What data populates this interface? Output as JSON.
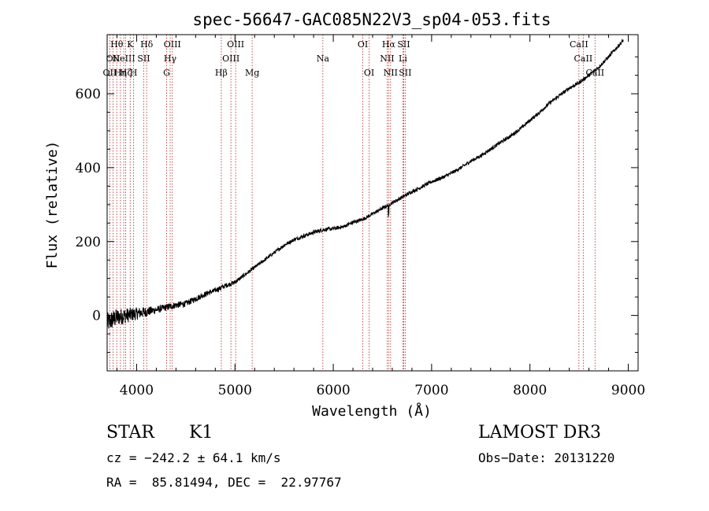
{
  "chart_data": {
    "type": "line",
    "title": "spec-56647-GAC085N22V3_sp04-053.fits",
    "xlabel": "Wavelength (Å)",
    "ylabel": "Flux (relative)",
    "xlim": [
      3700,
      9100
    ],
    "ylim": [
      -150,
      760
    ],
    "xticks": [
      4000,
      5000,
      6000,
      7000,
      8000,
      9000
    ],
    "xtick_labels": [
      "4000",
      "5000",
      "6000",
      "7000",
      "8000",
      "9000"
    ],
    "yticks": [
      0,
      200,
      400,
      600
    ],
    "ytick_labels": [
      "0",
      "200",
      "400",
      "600"
    ],
    "series": [
      {
        "name": "flux",
        "x": [
          3700,
          3800,
          3900,
          4000,
          4100,
          4200,
          4300,
          4400,
          4500,
          4600,
          4700,
          4800,
          4900,
          5000,
          5100,
          5200,
          5300,
          5400,
          5500,
          5600,
          5700,
          5800,
          5900,
          6000,
          6100,
          6200,
          6300,
          6400,
          6500,
          6600,
          6700,
          6800,
          6900,
          7000,
          7100,
          7200,
          7300,
          7400,
          7500,
          7600,
          7700,
          7800,
          7900,
          8000,
          8100,
          8200,
          8300,
          8400,
          8500,
          8600,
          8700,
          8800,
          8900,
          8950
        ],
        "y": [
          -20,
          -5,
          0,
          5,
          10,
          15,
          22,
          28,
          32,
          45,
          58,
          68,
          80,
          90,
          110,
          130,
          150,
          170,
          190,
          205,
          215,
          225,
          232,
          235,
          240,
          252,
          260,
          275,
          290,
          305,
          320,
          335,
          348,
          362,
          372,
          385,
          400,
          418,
          432,
          450,
          468,
          485,
          505,
          528,
          550,
          575,
          595,
          615,
          630,
          650,
          672,
          700,
          730,
          745
        ]
      }
    ],
    "lines": [
      {
        "x": 3727,
        "label": "OII",
        "row": 3
      },
      {
        "x": 3760,
        "label": "OII",
        "row": 2
      },
      {
        "x": 3798,
        "label": "Hθ",
        "row": 1
      },
      {
        "x": 3835,
        "label": "Hη",
        "row": 3
      },
      {
        "x": 3869,
        "label": "NeIII",
        "row": 2
      },
      {
        "x": 3889,
        "label": "Hζ",
        "row": 3
      },
      {
        "x": 3934,
        "label": "K",
        "row": 1
      },
      {
        "x": 3969,
        "label": "H",
        "row": 3
      },
      {
        "x": 4072,
        "label": "SII",
        "row": 2
      },
      {
        "x": 4102,
        "label": "Hδ",
        "row": 1
      },
      {
        "x": 4305,
        "label": "G",
        "row": 3
      },
      {
        "x": 4341,
        "label": "Hγ",
        "row": 2
      },
      {
        "x": 4363,
        "label": "OIII",
        "row": 1
      },
      {
        "x": 4861,
        "label": "Hβ",
        "row": 3
      },
      {
        "x": 4959,
        "label": "OIII",
        "row": 2
      },
      {
        "x": 5007,
        "label": "OIII",
        "row": 1
      },
      {
        "x": 5175,
        "label": "Mg",
        "row": 3
      },
      {
        "x": 5894,
        "label": "Na",
        "row": 2
      },
      {
        "x": 6300,
        "label": "OI",
        "row": 1
      },
      {
        "x": 6364,
        "label": "OI",
        "row": 3
      },
      {
        "x": 6548,
        "label": "NII",
        "row": 2
      },
      {
        "x": 6563,
        "label": "Hα",
        "row": 1
      },
      {
        "x": 6583,
        "label": "NII",
        "row": 3
      },
      {
        "x": 6708,
        "label": "Li",
        "row": 2
      },
      {
        "x": 6716,
        "label": "SII",
        "row": 1
      },
      {
        "x": 6731,
        "label": "SII",
        "row": 3
      },
      {
        "x": 8498,
        "label": "CaII",
        "row": 1
      },
      {
        "x": 8542,
        "label": "CaII",
        "row": 2
      },
      {
        "x": 8662,
        "label": "CaII",
        "row": 3
      }
    ]
  },
  "info": {
    "obj_class": "STAR",
    "subclass": "K1",
    "survey": "LAMOST DR3",
    "cz": "cz = −242.2 ± 64.1 km/s",
    "obs_date": "Obs−Date: 20131220",
    "radec": "RA =  85.81494, DEC =  22.97767"
  }
}
